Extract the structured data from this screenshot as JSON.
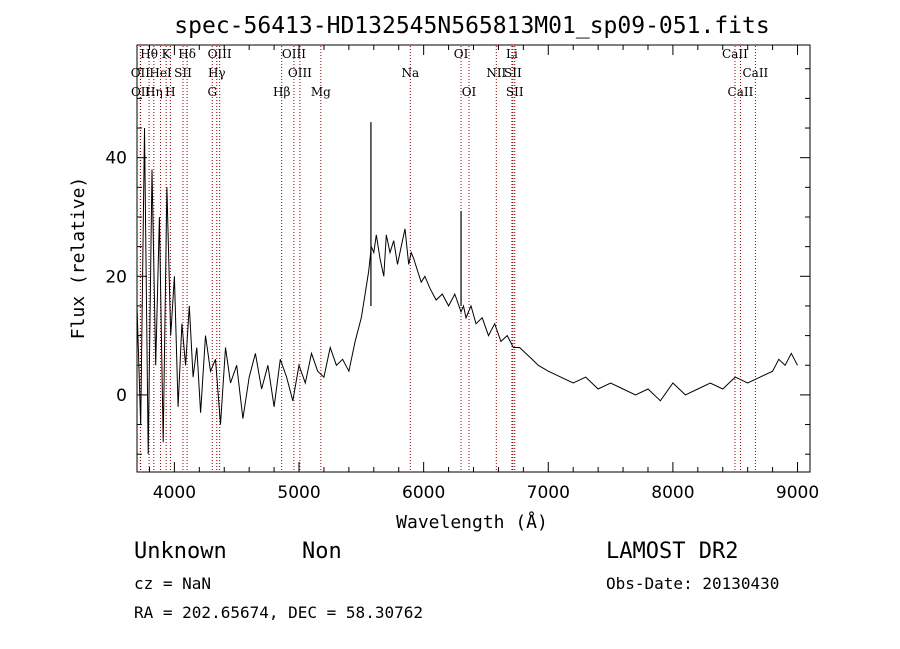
{
  "chart_data": {
    "type": "line",
    "title": "spec-56413-HD132545N565813M01_sp09-051.fits",
    "xlabel": "Wavelength (Å)",
    "ylabel": "Flux (relative)",
    "xlim": [
      3700,
      9100
    ],
    "ylim": [
      -13,
      59
    ],
    "xticks": [
      4000,
      5000,
      6000,
      7000,
      8000,
      9000
    ],
    "yticks": [
      0,
      20,
      40
    ],
    "grid": false,
    "line_color": "#000000",
    "marker_color": "#8b0000",
    "series": [
      {
        "x": [
          3700,
          3730,
          3760,
          3790,
          3820,
          3850,
          3880,
          3910,
          3940,
          3970,
          4000,
          4030,
          4060,
          4090,
          4120,
          4150,
          4180,
          4210,
          4250,
          4290,
          4330,
          4370,
          4410,
          4450,
          4500,
          4550,
          4600,
          4650,
          4700,
          4750,
          4800,
          4850,
          4900,
          4950,
          5000,
          5050,
          5100,
          5150,
          5200,
          5250,
          5300,
          5350,
          5400,
          5450,
          5500,
          5530,
          5560,
          5580,
          5600,
          5620,
          5650,
          5680,
          5700,
          5730,
          5760,
          5790,
          5820,
          5850,
          5880,
          5900,
          5920,
          5950,
          5980,
          6010,
          6050,
          6100,
          6150,
          6200,
          6250,
          6300,
          6320,
          6340,
          6380,
          6420,
          6470,
          6520,
          6570,
          6620,
          6670,
          6720,
          6770,
          6820,
          6870,
          6920,
          7000,
          7100,
          7200,
          7300,
          7400,
          7500,
          7600,
          7700,
          7800,
          7900,
          8000,
          8100,
          8200,
          8300,
          8400,
          8500,
          8600,
          8700,
          8800,
          8850,
          8900,
          8950,
          9000
        ],
        "y": [
          15,
          -5,
          45,
          -10,
          38,
          5,
          30,
          -8,
          35,
          10,
          20,
          -2,
          12,
          5,
          15,
          3,
          8,
          -3,
          10,
          4,
          6,
          -5,
          8,
          2,
          5,
          -4,
          3,
          7,
          1,
          5,
          -2,
          6,
          3,
          -1,
          5,
          2,
          7,
          4,
          3,
          8,
          5,
          6,
          4,
          9,
          13,
          17,
          21,
          25,
          24,
          27,
          23,
          20,
          27,
          24,
          26,
          22,
          25,
          28,
          22,
          24,
          23,
          21,
          19,
          20,
          18,
          16,
          17,
          15,
          17,
          14,
          15,
          13,
          15,
          12,
          13,
          10,
          12,
          9,
          10,
          8,
          8,
          7,
          6,
          5,
          4,
          3,
          2,
          3,
          1,
          2,
          1,
          0,
          1,
          -1,
          2,
          0,
          1,
          2,
          1,
          3,
          2,
          3,
          4,
          6,
          5,
          7,
          5
        ]
      }
    ],
    "spikes": [
      {
        "x": 5577,
        "y": 46
      },
      {
        "x": 6300,
        "y": 31
      }
    ],
    "lines_row1": [
      {
        "label": "Hθ",
        "x": 3797
      },
      {
        "label": "K",
        "x": 3934
      },
      {
        "label": "Hδ",
        "x": 4102
      },
      {
        "label": "OIII",
        "x": 4363
      },
      {
        "label": "OIII",
        "x": 4959
      },
      {
        "label": "OI",
        "x": 6300
      },
      {
        "label": "Li",
        "x": 6708
      },
      {
        "label": "CaII",
        "x": 8498
      }
    ],
    "lines_row2": [
      {
        "label": "OII",
        "x": 3727
      },
      {
        "label": "HeI",
        "x": 3889
      },
      {
        "label": "SII",
        "x": 4069
      },
      {
        "label": "Hγ",
        "x": 4340
      },
      {
        "label": "OIII",
        "x": 5007
      },
      {
        "label": "Na",
        "x": 5893
      },
      {
        "label": "NII",
        "x": 6583
      },
      {
        "label": "SII",
        "x": 6716
      },
      {
        "label": "CaII",
        "x": 8662
      }
    ],
    "lines_row3": [
      {
        "label": "OII",
        "x": 3729
      },
      {
        "label": "Hη",
        "x": 3835
      },
      {
        "label": "H",
        "x": 3968
      },
      {
        "label": "G",
        "x": 4304
      },
      {
        "label": "Hβ",
        "x": 4861
      },
      {
        "label": "Mg",
        "x": 5175
      },
      {
        "label": "OI",
        "x": 6364
      },
      {
        "label": "SII",
        "x": 6731
      },
      {
        "label": "CaII",
        "x": 8542
      }
    ]
  },
  "footer": {
    "class_label": "Unknown",
    "subclass_label": "Non",
    "survey": "LAMOST DR2",
    "redshift": "cz = NaN",
    "obs_date": "Obs-Date: 20130430",
    "coords": "RA = 202.65674, DEC =  58.30762"
  }
}
